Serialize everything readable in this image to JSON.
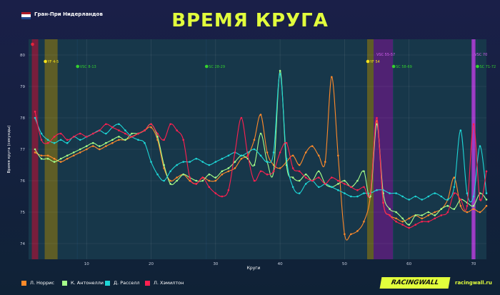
{
  "header": {
    "race_name": "Гран-При Нидерландов",
    "title": "ВРЕМЯ КРУГА",
    "flag_colors": [
      "#ae1c28",
      "#ffffff",
      "#21468b"
    ]
  },
  "footer": {
    "brand": "RACINGWALL",
    "site": "racingwall.ru"
  },
  "chart_data": {
    "type": "line",
    "xlabel": "Круги",
    "ylabel": "Время круга (секунды)",
    "xlim": [
      1,
      72
    ],
    "ylim": [
      73.5,
      80.5
    ],
    "x_ticks": [
      10,
      20,
      30,
      40,
      50,
      60,
      70
    ],
    "y_ticks": [
      74,
      75,
      76,
      77,
      78,
      79,
      80
    ],
    "grid": true,
    "annotations": [
      {
        "label": "",
        "from": 1.5,
        "to": 2.5,
        "color": "#8a1a3a",
        "marker_color": "#e3243b"
      },
      {
        "label": "YF 4-5",
        "from": 3.5,
        "to": 5.5,
        "color": "#6b6420",
        "marker_color": "#f5e21b"
      },
      {
        "label": "VSC 8-13",
        "from": 8.5,
        "to": 8.6,
        "color": "#1b3f5c",
        "marker_color": "#33d12e"
      },
      {
        "label": "SC 28-29",
        "from": 28.5,
        "to": 28.6,
        "color": "#1b3f5c",
        "marker_color": "#33d12e"
      },
      {
        "label": "YF 54",
        "from": 53.5,
        "to": 54.5,
        "color": "#6b6420",
        "marker_color": "#f5e21b"
      },
      {
        "label": "VSC 55-57",
        "from": 54.5,
        "to": 57.5,
        "color": "#5a1f7a",
        "marker_color": ""
      },
      {
        "label": "SC 58-69",
        "from": 57.5,
        "to": 57.6,
        "color": "#1b3f5c",
        "marker_color": "#33d12e"
      },
      {
        "label": "VSC 70",
        "from": 69.7,
        "to": 70.3,
        "color": "#b23ad8",
        "marker_color": ""
      },
      {
        "label": "SC 71-72",
        "from": 70.5,
        "to": 70.6,
        "color": "#1b3f5c",
        "marker_color": "#33d12e"
      }
    ],
    "series": [
      {
        "name": "Л. Норрис",
        "color": "#ff8a2a",
        "x": [
          2,
          3,
          4,
          5,
          6,
          7,
          8,
          9,
          10,
          11,
          12,
          13,
          14,
          15,
          16,
          17,
          18,
          19,
          20,
          21,
          22,
          23,
          24,
          25,
          26,
          27,
          28,
          29,
          30,
          31,
          32,
          33,
          34,
          35,
          36,
          37,
          38,
          39,
          40,
          41,
          42,
          43,
          44,
          45,
          46,
          47,
          48,
          49,
          50,
          51,
          52,
          53,
          54,
          55,
          56,
          57,
          58,
          59,
          60,
          61,
          62,
          63,
          64,
          65,
          66,
          67,
          68,
          69,
          70,
          71,
          72
        ],
        "y": [
          76.9,
          76.8,
          76.8,
          76.7,
          76.6,
          76.7,
          76.8,
          76.9,
          77.0,
          77.1,
          77.0,
          77.1,
          77.2,
          77.3,
          77.3,
          77.4,
          77.5,
          77.6,
          77.7,
          77.3,
          76.4,
          76.0,
          76.1,
          76.2,
          76.0,
          75.9,
          76.1,
          76.0,
          76.0,
          76.2,
          76.3,
          76.4,
          76.7,
          76.8,
          77.3,
          78.1,
          76.9,
          76.5,
          76.4,
          76.6,
          76.8,
          76.5,
          76.9,
          77.1,
          76.8,
          76.6,
          79.3,
          76.8,
          74.3,
          74.3,
          74.4,
          74.7,
          75.5,
          77.9,
          75.3,
          74.9,
          74.8,
          74.7,
          74.8,
          74.9,
          74.8,
          74.9,
          75.0,
          75.1,
          75.4,
          76.1,
          75.2,
          75.0,
          75.1,
          75.0,
          75.2
        ]
      },
      {
        "name": "К. Антонелли",
        "color": "#a5ff8a",
        "x": [
          2,
          3,
          4,
          5,
          6,
          7,
          8,
          9,
          10,
          11,
          12,
          13,
          14,
          15,
          16,
          17,
          18,
          19,
          20,
          21,
          22,
          23,
          24,
          25,
          26,
          27,
          28,
          29,
          30,
          31,
          32,
          33,
          34,
          35,
          36,
          37,
          38,
          39,
          40,
          41,
          42,
          43,
          44,
          45,
          46,
          47,
          48,
          49,
          50,
          51,
          52,
          53,
          54,
          55,
          56,
          57,
          58,
          59,
          60,
          61,
          62,
          63,
          64,
          65,
          66,
          67,
          68,
          69,
          70,
          71,
          72
        ],
        "y": [
          77.0,
          76.7,
          76.7,
          76.6,
          76.7,
          76.8,
          76.9,
          77.0,
          77.1,
          77.2,
          77.1,
          77.2,
          77.3,
          77.4,
          77.3,
          77.5,
          77.5,
          77.6,
          77.8,
          77.4,
          76.5,
          75.9,
          76.0,
          76.2,
          76.1,
          76.0,
          76.0,
          76.2,
          76.1,
          76.3,
          76.4,
          76.6,
          76.8,
          76.7,
          76.5,
          77.5,
          76.6,
          76.3,
          79.5,
          76.5,
          76.1,
          76.0,
          76.2,
          76.0,
          76.3,
          75.9,
          75.8,
          75.9,
          76.0,
          75.8,
          76.0,
          76.3,
          75.5,
          77.8,
          75.6,
          75.1,
          75.0,
          74.8,
          74.6,
          74.9,
          74.9,
          75.0,
          74.9,
          75.1,
          75.2,
          75.1,
          75.4,
          75.3,
          75.2,
          75.6,
          75.4
        ]
      },
      {
        "name": "Д. Расселл",
        "color": "#1ed6d6",
        "x": [
          2,
          3,
          4,
          5,
          6,
          7,
          8,
          9,
          10,
          11,
          12,
          13,
          14,
          15,
          16,
          17,
          18,
          19,
          20,
          21,
          22,
          23,
          24,
          25,
          26,
          27,
          28,
          29,
          30,
          31,
          32,
          33,
          34,
          35,
          36,
          37,
          38,
          39,
          40,
          41,
          42,
          43,
          44,
          45,
          46,
          47,
          48,
          49,
          50,
          51,
          52,
          53,
          54,
          55,
          56,
          57,
          58,
          59,
          60,
          61,
          62,
          63,
          64,
          65,
          66,
          67,
          68,
          69,
          70,
          71,
          72
        ],
        "y": [
          78.0,
          77.5,
          77.3,
          77.2,
          77.3,
          77.2,
          77.4,
          77.3,
          77.4,
          77.5,
          77.6,
          77.5,
          77.7,
          77.8,
          77.6,
          77.4,
          77.3,
          77.2,
          76.6,
          76.2,
          76.0,
          76.3,
          76.5,
          76.6,
          76.6,
          76.7,
          76.6,
          76.5,
          76.6,
          76.7,
          76.8,
          76.9,
          76.8,
          76.9,
          77.0,
          76.8,
          76.6,
          76.9,
          79.4,
          76.7,
          75.8,
          75.6,
          75.9,
          76.0,
          75.8,
          75.9,
          75.8,
          75.7,
          75.6,
          75.5,
          75.5,
          75.6,
          75.6,
          75.7,
          75.7,
          75.6,
          75.6,
          75.5,
          75.4,
          75.5,
          75.4,
          75.5,
          75.6,
          75.5,
          75.4,
          75.8,
          77.6,
          75.6,
          75.5,
          77.1,
          75.6
        ]
      },
      {
        "name": "Л. Хэмилтон",
        "color": "#ff2050",
        "x": [
          2,
          3,
          4,
          5,
          6,
          7,
          8,
          9,
          10,
          11,
          12,
          13,
          14,
          15,
          16,
          17,
          18,
          19,
          20,
          21,
          22,
          23,
          24,
          25,
          26,
          27,
          28,
          29,
          30,
          31,
          32,
          33,
          34,
          35,
          36,
          37,
          38,
          39,
          40,
          41,
          42,
          43,
          44,
          45,
          46,
          47,
          48,
          49,
          50,
          51,
          52,
          53,
          54,
          55,
          56,
          57,
          58,
          59,
          60,
          61,
          62,
          63,
          64,
          65,
          66,
          67,
          68,
          69,
          70,
          71,
          72
        ],
        "y": [
          78.2,
          77.3,
          77.2,
          77.4,
          77.5,
          77.3,
          77.4,
          77.5,
          77.4,
          77.5,
          77.6,
          77.8,
          77.7,
          77.6,
          77.5,
          77.4,
          77.5,
          77.6,
          77.8,
          77.5,
          77.3,
          77.8,
          77.6,
          77.3,
          76.1,
          75.9,
          76.1,
          75.8,
          75.6,
          75.5,
          75.7,
          76.9,
          78.0,
          76.8,
          76.0,
          76.3,
          76.2,
          76.3,
          76.9,
          77.2,
          76.4,
          76.3,
          76.1,
          76.0,
          76.1,
          75.9,
          76.1,
          76.0,
          75.9,
          75.8,
          75.7,
          75.8,
          75.6,
          78.0,
          75.3,
          74.9,
          74.7,
          74.6,
          74.5,
          74.6,
          74.7,
          74.7,
          74.8,
          74.9,
          75.0,
          75.6,
          75.4,
          75.2,
          77.8,
          75.4,
          76.3
        ]
      }
    ]
  }
}
